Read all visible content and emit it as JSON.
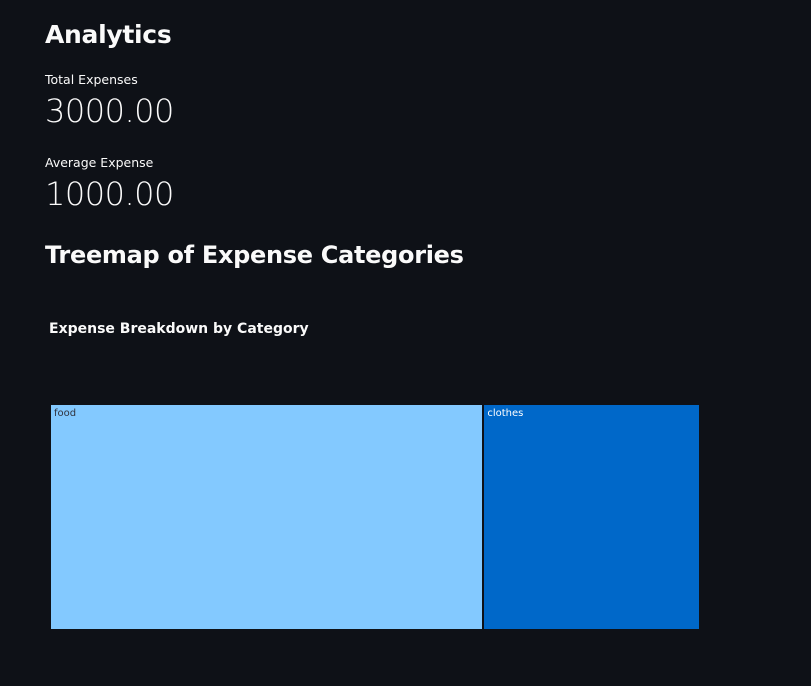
{
  "main": {
    "title": "Analytics",
    "metrics": [
      {
        "label": "Total Expenses",
        "value": "3000.00"
      },
      {
        "label": "Average Expense",
        "value": "1000.00"
      }
    ],
    "treemap_heading": "Treemap of Expense Categories"
  },
  "chart_data": {
    "type": "treemap",
    "title": "Expense Breakdown by Category",
    "items": [
      {
        "label": "food",
        "value": 2000,
        "color": "#83c9ff",
        "text_color": "#31333f"
      },
      {
        "label": "clothes",
        "value": 1000,
        "color": "#0068c9",
        "text_color": "#ffffff"
      }
    ]
  }
}
